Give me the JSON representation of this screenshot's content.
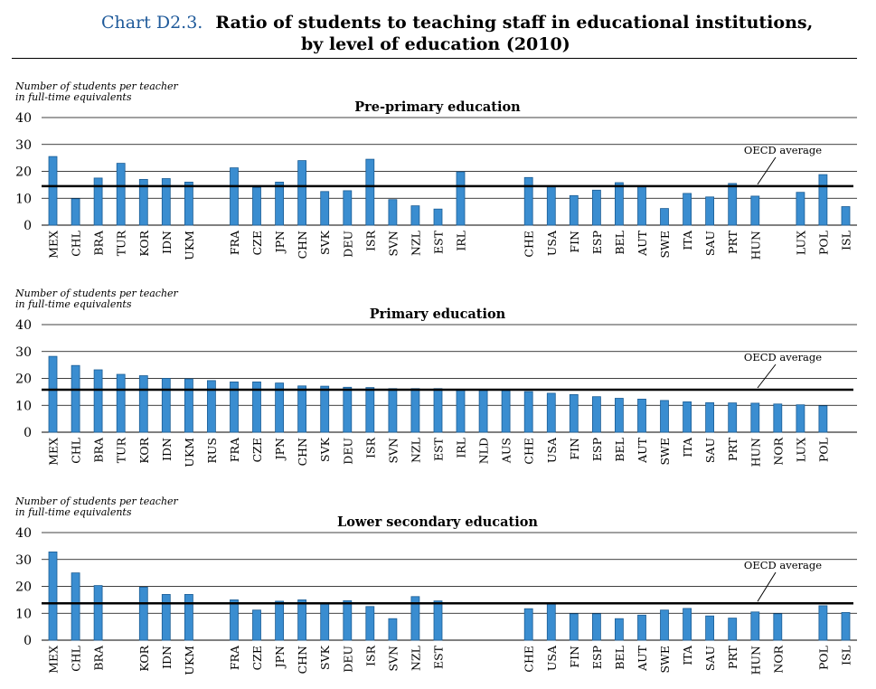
{
  "header": {
    "chart_number": "Chart D2.3.",
    "title_line1": "Ratio of students to teaching staff in educational institutions,",
    "title_line2": "by level of education (2010)"
  },
  "chart_data": [
    {
      "type": "bar",
      "title": "Pre-primary education",
      "ylabel_line1": "Number of students per teacher",
      "ylabel_line2": "in full-time equivalents",
      "ylim": [
        0,
        40
      ],
      "yticks": [
        "0",
        "10",
        "20",
        "30",
        "40"
      ],
      "grid": true,
      "reference_line": {
        "label": "OECD average",
        "value": 14.5
      },
      "categories": [
        "MEX",
        "CHL",
        "BRA",
        "TUR",
        "KOR",
        "IDN",
        "UKM",
        "RUS",
        "FRA",
        "CZE",
        "JPN",
        "CHN",
        "SVK",
        "DEU",
        "ISR",
        "SVN",
        "NZL",
        "EST",
        "IRL",
        "NLD",
        "AUS",
        "CHE",
        "USA",
        "FIN",
        "ESP",
        "BEL",
        "AUT",
        "SWE",
        "ITA",
        "SAU",
        "PRT",
        "HUN",
        "NOR",
        "LUX",
        "POL",
        "ISL"
      ],
      "labels": [
        "MEX",
        "CHL",
        "BRA",
        "TUR",
        "KOR",
        "IDN",
        "UKM",
        "",
        "FRA",
        "CZE",
        "JPN",
        "CHN",
        "SVK",
        "DEU",
        "ISR",
        "SVN",
        "NZL",
        "EST",
        "IRL",
        "",
        "",
        "CHE",
        "USA",
        "FIN",
        "ESP",
        "BEL",
        "AUT",
        "SWE",
        "ITA",
        "SAU",
        "PRT",
        "HUN",
        "",
        "LUX",
        "POL",
        "ISL"
      ],
      "values": [
        25.5,
        9.8,
        17.5,
        23,
        17,
        17.3,
        16,
        null,
        21.3,
        14,
        16,
        24,
        12.5,
        12.8,
        24.5,
        9.5,
        7.2,
        6,
        19.8,
        null,
        null,
        17.7,
        14.5,
        11,
        13,
        15.8,
        14.5,
        6.2,
        11.8,
        10.5,
        15.5,
        10.8,
        null,
        12.2,
        18.8,
        6.9
      ]
    },
    {
      "type": "bar",
      "title": "Primary education",
      "ylabel_line1": "Number of students per teacher",
      "ylabel_line2": "in full-time equivalents",
      "ylim": [
        0,
        40
      ],
      "yticks": [
        "0",
        "10",
        "20",
        "30",
        "40"
      ],
      "grid": true,
      "reference_line": {
        "label": "OECD average",
        "value": 15.8
      },
      "categories": [
        "MEX",
        "CHL",
        "BRA",
        "TUR",
        "KOR",
        "IDN",
        "UKM",
        "RUS",
        "FRA",
        "CZE",
        "JPN",
        "CHN",
        "SVK",
        "DEU",
        "ISR",
        "SVN",
        "NZL",
        "EST",
        "IRL",
        "NLD",
        "AUS",
        "CHE",
        "USA",
        "FIN",
        "ESP",
        "BEL",
        "AUT",
        "SWE",
        "ITA",
        "SAU",
        "PRT",
        "HUN",
        "NOR",
        "LUX",
        "POL",
        "ISL"
      ],
      "labels": [
        "MEX",
        "CHL",
        "BRA",
        "TUR",
        "KOR",
        "IDN",
        "UKM",
        "RUS",
        "FRA",
        "CZE",
        "JPN",
        "CHN",
        "SVK",
        "DEU",
        "ISR",
        "SVN",
        "NZL",
        "EST",
        "IRL",
        "NLD",
        "AUS",
        "CHE",
        "USA",
        "FIN",
        "ESP",
        "BEL",
        "AUT",
        "SWE",
        "ITA",
        "SAU",
        "PRT",
        "HUN",
        "NOR",
        "LUX",
        "POL",
        ""
      ],
      "values": [
        28.2,
        24.8,
        23.2,
        21.5,
        21,
        20,
        19.8,
        19.2,
        18.7,
        18.7,
        18.3,
        17.2,
        17.1,
        16.7,
        16.6,
        16.2,
        16.2,
        16.2,
        15.9,
        15.7,
        15.5,
        15.1,
        14.5,
        14,
        13.2,
        12.6,
        12.3,
        11.8,
        11.3,
        11,
        10.9,
        10.8,
        10.5,
        10.2,
        9.8,
        null
      ]
    },
    {
      "type": "bar",
      "title": "Lower secondary education",
      "ylabel_line1": "Number of students per teacher",
      "ylabel_line2": "in full-time equivalents",
      "ylim": [
        0,
        40
      ],
      "yticks": [
        "0",
        "10",
        "20",
        "30",
        "40"
      ],
      "grid": true,
      "reference_line": {
        "label": "OECD average",
        "value": 13.7
      },
      "categories": [
        "MEX",
        "CHL",
        "BRA",
        "TUR",
        "KOR",
        "IDN",
        "UKM",
        "RUS",
        "FRA",
        "CZE",
        "JPN",
        "CHN",
        "SVK",
        "DEU",
        "ISR",
        "SVN",
        "NZL",
        "EST",
        "IRL",
        "NLD",
        "AUS",
        "CHE",
        "USA",
        "FIN",
        "ESP",
        "BEL",
        "AUT",
        "SWE",
        "ITA",
        "SAU",
        "PRT",
        "HUN",
        "NOR",
        "LUX",
        "POL",
        "ISL"
      ],
      "labels": [
        "MEX",
        "CHL",
        "BRA",
        "",
        "KOR",
        "IDN",
        "UKM",
        "",
        "FRA",
        "CZE",
        "JPN",
        "CHN",
        "SVK",
        "DEU",
        "ISR",
        "SVN",
        "NZL",
        "EST",
        "",
        "",
        "",
        "CHE",
        "USA",
        "FIN",
        "ESP",
        "BEL",
        "AUT",
        "SWE",
        "ITA",
        "SAU",
        "PRT",
        "HUN",
        "NOR",
        "",
        "POL",
        "ISL"
      ],
      "values": [
        32.8,
        25,
        20.3,
        null,
        19.7,
        17,
        17,
        null,
        15,
        11.2,
        14.5,
        15,
        13.5,
        14.7,
        12.5,
        8,
        16.2,
        14.6,
        null,
        null,
        null,
        11.7,
        13.5,
        9.8,
        9.8,
        8,
        9.3,
        11.2,
        11.8,
        9,
        8.2,
        10.5,
        9.8,
        null,
        12.8,
        10.3
      ]
    }
  ]
}
